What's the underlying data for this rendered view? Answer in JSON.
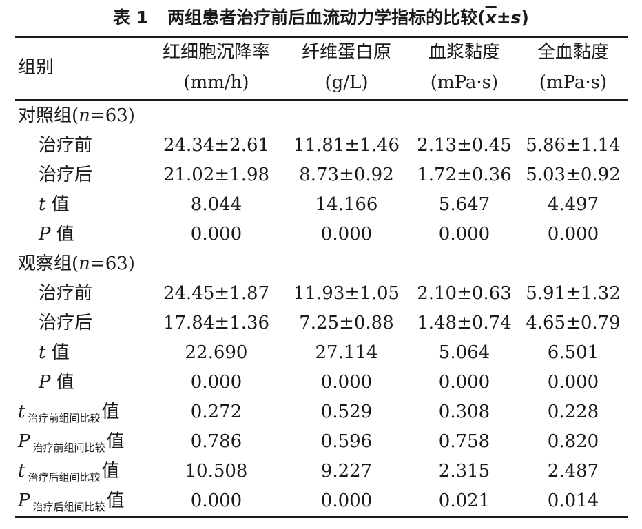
{
  "title": {
    "number": "表 1",
    "text": "两组患者治疗前后血流动力学指标的比较(",
    "mean": "x",
    "pm": "±",
    "sd": "s",
    "close": ")"
  },
  "header": {
    "group_label": "组别",
    "columns": [
      {
        "name": "红细胞沉降率",
        "unit": "(mm/h)"
      },
      {
        "name": "纤维蛋白原",
        "unit": "(g/L)"
      },
      {
        "name": "血浆黏度",
        "unit": "(mPa·s)"
      },
      {
        "name": "全血黏度",
        "unit": "(mPa·s)"
      }
    ]
  },
  "groups": [
    {
      "label": "对照组(",
      "n_var": "n",
      "n_val": "=63)",
      "rows": [
        {
          "label": "治疗前",
          "values": [
            "24.34±2.61",
            "11.81±1.46",
            "2.13±0.45",
            "5.86±1.14"
          ]
        },
        {
          "label": "治疗后",
          "values": [
            "21.02±1.98",
            "8.73±0.92",
            "1.72±0.36",
            "5.03±0.92"
          ]
        },
        {
          "stat": "t",
          "suffix": "值",
          "values": [
            "8.044",
            "14.166",
            "5.647",
            "4.497"
          ]
        },
        {
          "stat": "P",
          "suffix": "值",
          "values": [
            "0.000",
            "0.000",
            "0.000",
            "0.000"
          ]
        }
      ]
    },
    {
      "label": "观察组(",
      "n_var": "n",
      "n_val": "=63)",
      "rows": [
        {
          "label": "治疗前",
          "values": [
            "24.45±1.87",
            "11.93±1.05",
            "2.10±0.63",
            "5.91±1.32"
          ]
        },
        {
          "label": "治疗后",
          "values": [
            "17.84±1.36",
            "7.25±0.88",
            "1.48±0.74",
            "4.65±0.79"
          ]
        },
        {
          "stat": "t",
          "suffix": "值",
          "values": [
            "22.690",
            "27.114",
            "5.064",
            "6.501"
          ]
        },
        {
          "stat": "P",
          "suffix": "值",
          "values": [
            "0.000",
            "0.000",
            "0.000",
            "0.000"
          ]
        }
      ]
    }
  ],
  "comparisons": [
    {
      "stat": "t",
      "sub": "治疗前组间比较",
      "suffix": "值",
      "values": [
        "0.272",
        "0.529",
        "0.308",
        "0.228"
      ]
    },
    {
      "stat": "P",
      "sub": "治疗前组间比较",
      "suffix": "值",
      "values": [
        "0.786",
        "0.596",
        "0.758",
        "0.820"
      ]
    },
    {
      "stat": "t",
      "sub": "治疗后组间比较",
      "suffix": "值",
      "values": [
        "10.508",
        "9.227",
        "2.315",
        "2.487"
      ]
    },
    {
      "stat": "P",
      "sub": "治疗后组间比较",
      "suffix": "值",
      "values": [
        "0.000",
        "0.000",
        "0.021",
        "0.014"
      ]
    }
  ]
}
